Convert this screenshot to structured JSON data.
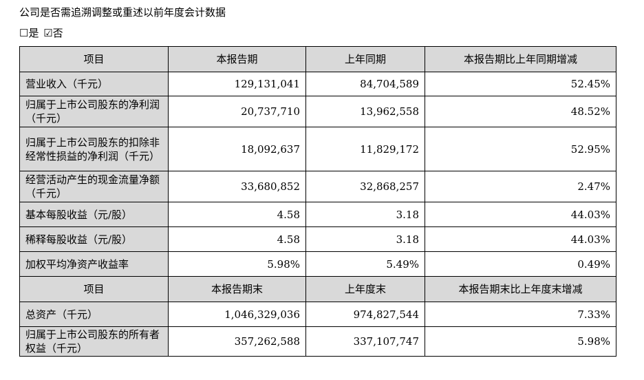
{
  "intro_text": "公司是否需追溯调整或重述以前年度会计数据",
  "choice": {
    "option_yes": "☐是",
    "option_no": "☑否"
  },
  "table": {
    "header1": [
      "项目",
      "本报告期",
      "上年同期",
      "本报告期比上年同期增减"
    ],
    "rows1": [
      {
        "label": "营业收入（千元）",
        "current": "129,131,041",
        "previous": "84,704,589",
        "change": "52.45%"
      },
      {
        "label": "归属于上市公司股东的净利润（千元）",
        "current": "20,737,710",
        "previous": "13,962,558",
        "change": "48.52%"
      },
      {
        "label": "归属于上市公司股东的扣除非经常性损益的净利润（千元）",
        "current": "18,092,637",
        "previous": "11,829,172",
        "change": "52.95%"
      },
      {
        "label": "经营活动产生的现金流量净额（千元）",
        "current": "33,680,852",
        "previous": "32,868,257",
        "change": "2.47%"
      },
      {
        "label": "基本每股收益（元/股）",
        "current": "4.58",
        "previous": "3.18",
        "change": "44.03%"
      },
      {
        "label": "稀释每股收益（元/股）",
        "current": "4.58",
        "previous": "3.18",
        "change": "44.03%"
      },
      {
        "label": "加权平均净资产收益率",
        "current": "5.98%",
        "previous": "5.49%",
        "change": "0.49%"
      }
    ],
    "header2": [
      "项目",
      "本报告期末",
      "上年度末",
      "本报告期末比上年度末增减"
    ],
    "rows2": [
      {
        "label": "总资产（千元）",
        "current": "1,046,329,036",
        "previous": "974,827,544",
        "change": "7.33%"
      },
      {
        "label": "归属于上市公司股东的所有者权益（千元）",
        "current": "357,262,588",
        "previous": "337,107,747",
        "change": "5.98%"
      }
    ]
  }
}
